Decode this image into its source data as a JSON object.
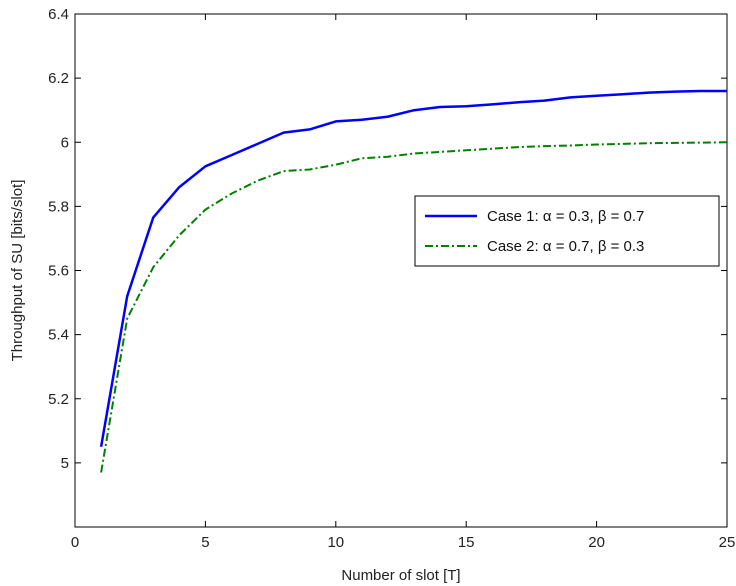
{
  "chart_data": {
    "type": "line",
    "title": "",
    "xlabel": "Number of slot [T]",
    "ylabel": "Throughput of SU [bits/slot]",
    "xlim": [
      0,
      25
    ],
    "ylim": [
      4.8,
      6.4
    ],
    "xticks": [
      0,
      5,
      10,
      15,
      20,
      25
    ],
    "yticks": [
      5,
      5.2,
      5.4,
      5.6,
      5.8,
      6,
      6.2,
      6.4
    ],
    "xtick_labels": [
      "0",
      "5",
      "10",
      "15",
      "20",
      "25"
    ],
    "ytick_labels": [
      "5",
      "5.2",
      "5.4",
      "5.6",
      "5.8",
      "6",
      "6.2",
      "6.4"
    ],
    "grid": false,
    "legend_position": "center-right",
    "series": [
      {
        "name": "Case 1: α = 0.3, β = 0.7",
        "color": "#0000ff",
        "line_style": "solid",
        "x": [
          1,
          2,
          3,
          4,
          5,
          6,
          7,
          8,
          9,
          10,
          11,
          12,
          13,
          14,
          15,
          16,
          17,
          18,
          19,
          20,
          21,
          22,
          23,
          24,
          25
        ],
        "values": [
          5.05,
          5.52,
          5.765,
          5.86,
          5.925,
          5.96,
          5.995,
          6.03,
          6.04,
          6.065,
          6.07,
          6.08,
          6.1,
          6.11,
          6.112,
          6.118,
          6.125,
          6.13,
          6.14,
          6.145,
          6.15,
          6.155,
          6.158,
          6.16,
          6.16
        ]
      },
      {
        "name": "Case 2: α = 0.7, β = 0.3",
        "color": "#008000",
        "line_style": "dash-dot",
        "x": [
          1,
          2,
          3,
          4,
          5,
          6,
          7,
          8,
          9,
          10,
          11,
          12,
          13,
          14,
          15,
          16,
          17,
          18,
          19,
          20,
          21,
          22,
          23,
          24,
          25
        ],
        "values": [
          4.97,
          5.45,
          5.61,
          5.71,
          5.79,
          5.84,
          5.88,
          5.91,
          5.915,
          5.93,
          5.95,
          5.955,
          5.965,
          5.97,
          5.975,
          5.98,
          5.985,
          5.988,
          5.99,
          5.993,
          5.995,
          5.997,
          5.998,
          5.999,
          6.0
        ]
      }
    ]
  }
}
